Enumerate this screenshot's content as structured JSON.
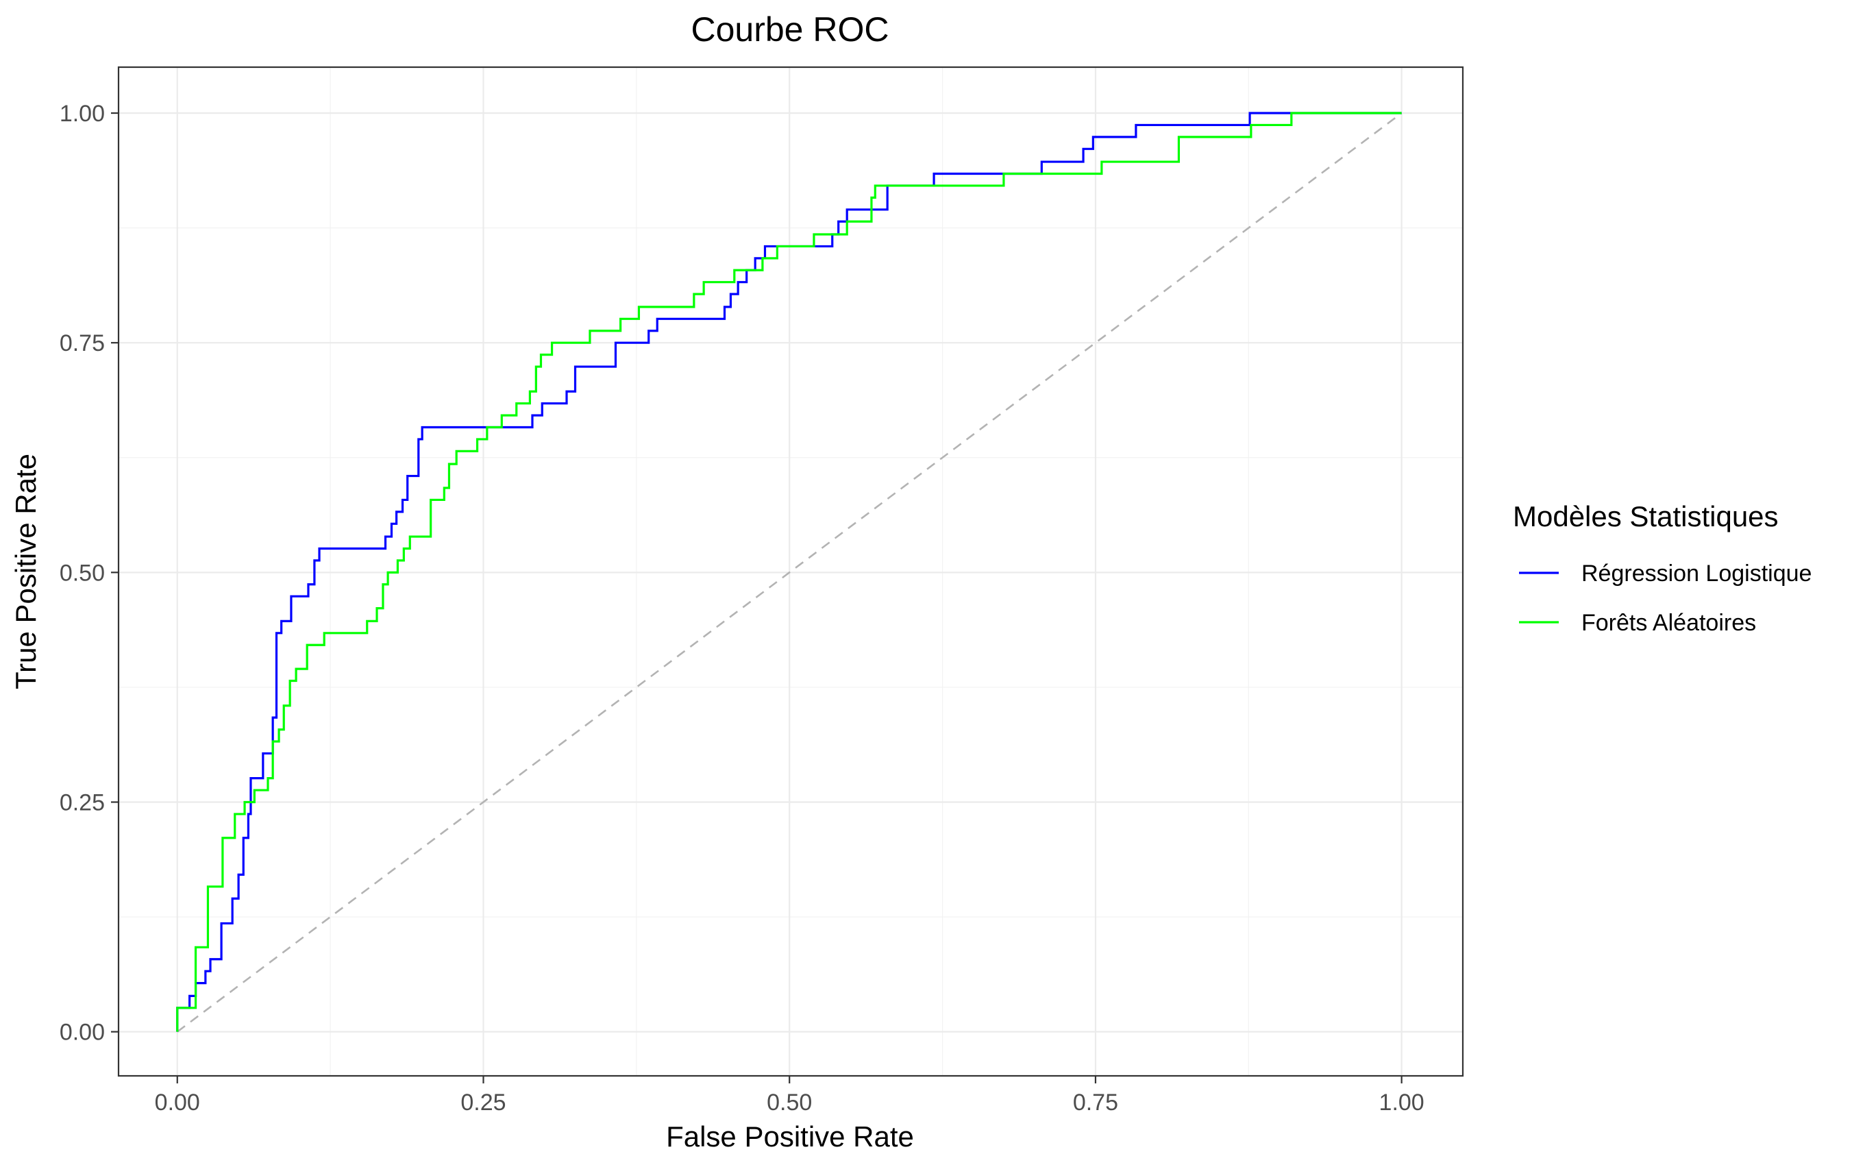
{
  "chart_data": {
    "type": "line",
    "title": "Courbe ROC",
    "xlabel": "False Positive Rate",
    "ylabel": "True Positive Rate",
    "xlim": [
      -0.048,
      1.05
    ],
    "ylim": [
      -0.048,
      1.05
    ],
    "x_ticks": [
      0,
      0.25,
      0.5,
      0.75,
      1
    ],
    "x_tick_labels": [
      "0.00",
      "0.25",
      "0.50",
      "0.75",
      "1.00"
    ],
    "y_ticks": [
      0,
      0.25,
      0.5,
      0.75,
      1
    ],
    "y_tick_labels": [
      "0.00",
      "0.25",
      "0.50",
      "0.75",
      "1.00"
    ],
    "grid": true,
    "legend_title": "Modèles Statistiques",
    "legend_position": "right",
    "reference_line": {
      "x": [
        0,
        1
      ],
      "y": [
        0,
        1
      ],
      "color": "#b3b3b3",
      "style": "dashed"
    },
    "series": [
      {
        "name": "Régression Logistique",
        "color": "#0000ff",
        "points": [
          [
            0,
            0
          ],
          [
            0,
            0.026
          ],
          [
            0.01,
            0.026
          ],
          [
            0.01,
            0.039
          ],
          [
            0.015,
            0.039
          ],
          [
            0.015,
            0.053
          ],
          [
            0.023,
            0.053
          ],
          [
            0.023,
            0.066
          ],
          [
            0.027,
            0.066
          ],
          [
            0.027,
            0.079
          ],
          [
            0.036,
            0.079
          ],
          [
            0.036,
            0.118
          ],
          [
            0.045,
            0.118
          ],
          [
            0.045,
            0.145
          ],
          [
            0.05,
            0.145
          ],
          [
            0.05,
            0.171
          ],
          [
            0.054,
            0.171
          ],
          [
            0.054,
            0.211
          ],
          [
            0.058,
            0.211
          ],
          [
            0.058,
            0.237
          ],
          [
            0.06,
            0.237
          ],
          [
            0.06,
            0.276
          ],
          [
            0.07,
            0.276
          ],
          [
            0.07,
            0.303
          ],
          [
            0.078,
            0.303
          ],
          [
            0.078,
            0.342
          ],
          [
            0.081,
            0.342
          ],
          [
            0.081,
            0.434
          ],
          [
            0.085,
            0.434
          ],
          [
            0.085,
            0.447
          ],
          [
            0.093,
            0.447
          ],
          [
            0.093,
            0.474
          ],
          [
            0.107,
            0.474
          ],
          [
            0.107,
            0.487
          ],
          [
            0.112,
            0.487
          ],
          [
            0.112,
            0.513
          ],
          [
            0.116,
            0.513
          ],
          [
            0.116,
            0.526
          ],
          [
            0.17,
            0.526
          ],
          [
            0.17,
            0.539
          ],
          [
            0.175,
            0.539
          ],
          [
            0.175,
            0.553
          ],
          [
            0.179,
            0.553
          ],
          [
            0.179,
            0.566
          ],
          [
            0.184,
            0.566
          ],
          [
            0.184,
            0.579
          ],
          [
            0.188,
            0.579
          ],
          [
            0.188,
            0.605
          ],
          [
            0.197,
            0.605
          ],
          [
            0.197,
            0.645
          ],
          [
            0.2,
            0.645
          ],
          [
            0.2,
            0.658
          ],
          [
            0.29,
            0.658
          ],
          [
            0.29,
            0.671
          ],
          [
            0.298,
            0.671
          ],
          [
            0.298,
            0.684
          ],
          [
            0.318,
            0.684
          ],
          [
            0.318,
            0.697
          ],
          [
            0.325,
            0.697
          ],
          [
            0.325,
            0.724
          ],
          [
            0.358,
            0.724
          ],
          [
            0.358,
            0.75
          ],
          [
            0.385,
            0.75
          ],
          [
            0.385,
            0.763
          ],
          [
            0.392,
            0.763
          ],
          [
            0.392,
            0.776
          ],
          [
            0.447,
            0.776
          ],
          [
            0.447,
            0.789
          ],
          [
            0.452,
            0.789
          ],
          [
            0.452,
            0.803
          ],
          [
            0.458,
            0.803
          ],
          [
            0.458,
            0.816
          ],
          [
            0.465,
            0.816
          ],
          [
            0.465,
            0.829
          ],
          [
            0.472,
            0.829
          ],
          [
            0.472,
            0.842
          ],
          [
            0.48,
            0.842
          ],
          [
            0.48,
            0.855
          ],
          [
            0.535,
            0.855
          ],
          [
            0.535,
            0.868
          ],
          [
            0.54,
            0.868
          ],
          [
            0.54,
            0.882
          ],
          [
            0.547,
            0.882
          ],
          [
            0.547,
            0.895
          ],
          [
            0.58,
            0.895
          ],
          [
            0.58,
            0.921
          ],
          [
            0.618,
            0.921
          ],
          [
            0.618,
            0.934
          ],
          [
            0.706,
            0.934
          ],
          [
            0.706,
            0.947
          ],
          [
            0.74,
            0.947
          ],
          [
            0.74,
            0.961
          ],
          [
            0.748,
            0.961
          ],
          [
            0.748,
            0.974
          ],
          [
            0.783,
            0.974
          ],
          [
            0.783,
            0.987
          ],
          [
            0.876,
            0.987
          ],
          [
            0.876,
            1
          ],
          [
            1,
            1
          ]
        ]
      },
      {
        "name": "Forêts Aléatoires",
        "color": "#00ff00",
        "points": [
          [
            0,
            0
          ],
          [
            0,
            0.026
          ],
          [
            0.015,
            0.026
          ],
          [
            0.015,
            0.092
          ],
          [
            0.025,
            0.092
          ],
          [
            0.025,
            0.158
          ],
          [
            0.037,
            0.158
          ],
          [
            0.037,
            0.211
          ],
          [
            0.047,
            0.211
          ],
          [
            0.047,
            0.237
          ],
          [
            0.055,
            0.237
          ],
          [
            0.055,
            0.25
          ],
          [
            0.063,
            0.25
          ],
          [
            0.063,
            0.263
          ],
          [
            0.074,
            0.263
          ],
          [
            0.074,
            0.276
          ],
          [
            0.078,
            0.276
          ],
          [
            0.078,
            0.316
          ],
          [
            0.083,
            0.316
          ],
          [
            0.083,
            0.329
          ],
          [
            0.087,
            0.329
          ],
          [
            0.087,
            0.355
          ],
          [
            0.092,
            0.355
          ],
          [
            0.092,
            0.382
          ],
          [
            0.097,
            0.382
          ],
          [
            0.097,
            0.395
          ],
          [
            0.106,
            0.395
          ],
          [
            0.106,
            0.421
          ],
          [
            0.12,
            0.421
          ],
          [
            0.12,
            0.434
          ],
          [
            0.155,
            0.434
          ],
          [
            0.155,
            0.447
          ],
          [
            0.163,
            0.447
          ],
          [
            0.163,
            0.461
          ],
          [
            0.168,
            0.461
          ],
          [
            0.168,
            0.487
          ],
          [
            0.172,
            0.487
          ],
          [
            0.172,
            0.5
          ],
          [
            0.18,
            0.5
          ],
          [
            0.18,
            0.513
          ],
          [
            0.185,
            0.513
          ],
          [
            0.185,
            0.526
          ],
          [
            0.19,
            0.526
          ],
          [
            0.19,
            0.539
          ],
          [
            0.207,
            0.539
          ],
          [
            0.207,
            0.579
          ],
          [
            0.218,
            0.579
          ],
          [
            0.218,
            0.592
          ],
          [
            0.222,
            0.592
          ],
          [
            0.222,
            0.618
          ],
          [
            0.228,
            0.618
          ],
          [
            0.228,
            0.632
          ],
          [
            0.245,
            0.632
          ],
          [
            0.245,
            0.645
          ],
          [
            0.253,
            0.645
          ],
          [
            0.253,
            0.658
          ],
          [
            0.265,
            0.658
          ],
          [
            0.265,
            0.671
          ],
          [
            0.277,
            0.671
          ],
          [
            0.277,
            0.684
          ],
          [
            0.288,
            0.684
          ],
          [
            0.288,
            0.697
          ],
          [
            0.293,
            0.697
          ],
          [
            0.293,
            0.724
          ],
          [
            0.297,
            0.724
          ],
          [
            0.297,
            0.737
          ],
          [
            0.306,
            0.737
          ],
          [
            0.306,
            0.75
          ],
          [
            0.337,
            0.75
          ],
          [
            0.337,
            0.763
          ],
          [
            0.362,
            0.763
          ],
          [
            0.362,
            0.776
          ],
          [
            0.377,
            0.776
          ],
          [
            0.377,
            0.789
          ],
          [
            0.422,
            0.789
          ],
          [
            0.422,
            0.803
          ],
          [
            0.43,
            0.803
          ],
          [
            0.43,
            0.816
          ],
          [
            0.455,
            0.816
          ],
          [
            0.455,
            0.829
          ],
          [
            0.478,
            0.829
          ],
          [
            0.478,
            0.842
          ],
          [
            0.49,
            0.842
          ],
          [
            0.49,
            0.855
          ],
          [
            0.52,
            0.855
          ],
          [
            0.52,
            0.868
          ],
          [
            0.547,
            0.868
          ],
          [
            0.547,
            0.882
          ],
          [
            0.567,
            0.882
          ],
          [
            0.567,
            0.908
          ],
          [
            0.57,
            0.908
          ],
          [
            0.57,
            0.921
          ],
          [
            0.675,
            0.921
          ],
          [
            0.675,
            0.934
          ],
          [
            0.755,
            0.934
          ],
          [
            0.755,
            0.947
          ],
          [
            0.818,
            0.947
          ],
          [
            0.818,
            0.974
          ],
          [
            0.877,
            0.974
          ],
          [
            0.877,
            0.987
          ],
          [
            0.91,
            0.987
          ],
          [
            0.91,
            1
          ],
          [
            1,
            1
          ]
        ]
      }
    ]
  }
}
